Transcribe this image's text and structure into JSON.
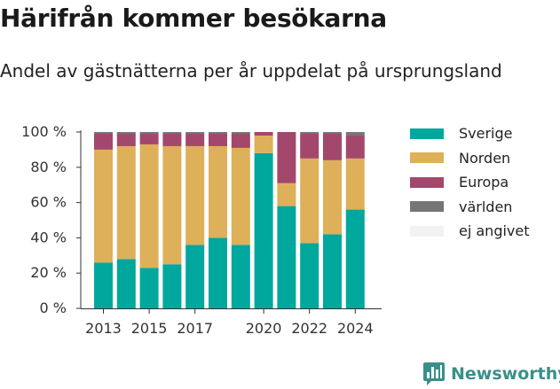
{
  "title": "Härifrån kommer besökarna",
  "subtitle": "Andel av gästnätterna per år uppdelat på ursprungsland",
  "brand": {
    "name": "Newsworthy",
    "color": "#3a8f8a",
    "icon": "bar-chart-speech-bubble-icon"
  },
  "colors": {
    "Sverige": "#00a79d",
    "Norden": "#deb05a",
    "Europa": "#a3476c",
    "världen": "#767676",
    "ej angivet": "#f2f2f2"
  },
  "chart_data": {
    "type": "bar",
    "stacked": true,
    "categories": [
      2013,
      2014,
      2015,
      2016,
      2017,
      2018,
      2019,
      2020,
      2021,
      2022,
      2023,
      2024
    ],
    "x_tick_labels": [
      "2013",
      "2015",
      "2017",
      "2020",
      "2022",
      "2024"
    ],
    "y_tick_labels": [
      "0 %",
      "20 %",
      "40 %",
      "60 %",
      "80 %",
      "100 %"
    ],
    "ylim": [
      0,
      100
    ],
    "grid": false,
    "legend_position": "right",
    "series": [
      {
        "name": "Sverige",
        "values": [
          26,
          28,
          23,
          25,
          36,
          40,
          36,
          88,
          58,
          37,
          42,
          56
        ]
      },
      {
        "name": "Norden",
        "values": [
          64,
          64,
          70,
          67,
          56,
          52,
          55,
          10,
          13,
          48,
          42,
          29
        ]
      },
      {
        "name": "Europa",
        "values": [
          9,
          7,
          6,
          7,
          7,
          7,
          8,
          2,
          29,
          14,
          15,
          13
        ]
      },
      {
        "name": "världen",
        "values": [
          1,
          1,
          1,
          1,
          1,
          1,
          1,
          0,
          0,
          1,
          1,
          2
        ]
      },
      {
        "name": "ej angivet",
        "values": [
          0,
          0,
          0,
          0,
          0,
          0,
          0,
          0,
          0,
          0,
          0,
          0
        ]
      }
    ]
  }
}
